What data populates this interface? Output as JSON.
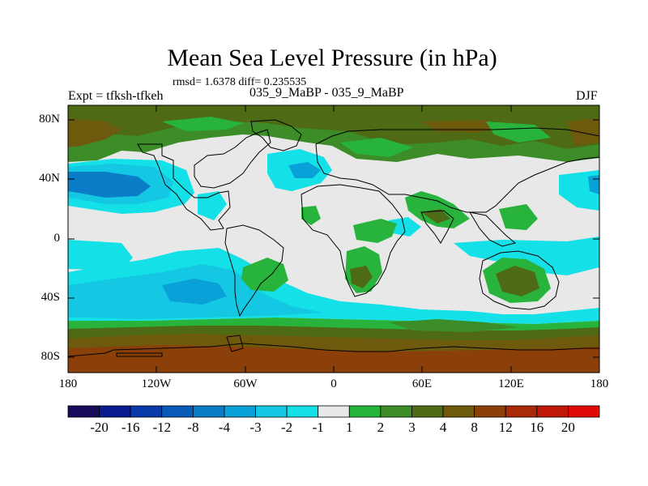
{
  "title": "Mean Sea Level Pressure (in hPa)",
  "stats": "rmsd= 1.6378 diff= 0.235535",
  "experiment": "Expt = tfksh-tfkeh",
  "period": "035_9_MaBP - 035_9_MaBP",
  "season": "DJF",
  "lat_labels": [
    "80N",
    "40N",
    "0",
    "40S",
    "80S"
  ],
  "lon_labels": [
    "180",
    "120W",
    "60W",
    "0",
    "60E",
    "120E",
    "180"
  ],
  "colorbar": {
    "labels": [
      "-20",
      "-16",
      "-12",
      "-8",
      "-4",
      "-3",
      "-2",
      "-1",
      "1",
      "2",
      "3",
      "4",
      "8",
      "12",
      "16",
      "20"
    ],
    "colors": [
      "#1a0a5c",
      "#0a1a8c",
      "#0a3aa8",
      "#0a5ab8",
      "#0a7cc8",
      "#0aa0d8",
      "#14c8e4",
      "#14e0e8",
      "#e8e8e8",
      "#28b43c",
      "#3c8c28",
      "#4e6a14",
      "#6e5a0c",
      "#8a4008",
      "#a82a08",
      "#c01808",
      "#e00808"
    ]
  },
  "palette": {
    "background": "#e8e8e8",
    "cyan": "#14e0e8",
    "light_blue": "#14c8e4",
    "mid_blue": "#0aa0d8",
    "blue": "#0a7cc8",
    "green": "#28b43c",
    "dark_green": "#3c8c28",
    "olive": "#4e6a14",
    "brown": "#6e5a0c"
  }
}
